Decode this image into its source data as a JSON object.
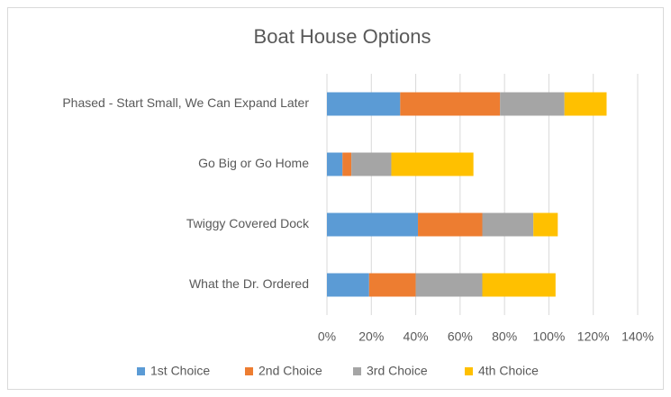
{
  "chart_data": {
    "type": "stacked-bar-horizontal",
    "title": "Boat House Options",
    "categories": [
      "Phased - Start Small, We Can Expand Later",
      "Go Big or Go Home",
      "Twiggy Covered Dock",
      "What the Dr. Ordered"
    ],
    "series": [
      {
        "name": "1st Choice",
        "color": "#5b9bd5",
        "values": [
          33,
          7,
          41,
          19
        ]
      },
      {
        "name": "2nd Choice",
        "color": "#ed7d31",
        "values": [
          45,
          4,
          29,
          21
        ]
      },
      {
        "name": "3rd Choice",
        "color": "#a5a5a5",
        "values": [
          29,
          18,
          23,
          30
        ]
      },
      {
        "name": "4th Choice",
        "color": "#ffc000",
        "values": [
          19,
          37,
          11,
          33
        ]
      }
    ],
    "xlim": [
      0,
      140
    ],
    "xticks": [
      {
        "value": 0,
        "label": "0%"
      },
      {
        "value": 20,
        "label": "20%"
      },
      {
        "value": 40,
        "label": "40%"
      },
      {
        "value": 60,
        "label": "60%"
      },
      {
        "value": 80,
        "label": "80%"
      },
      {
        "value": 100,
        "label": "100%"
      },
      {
        "value": 120,
        "label": "120%"
      },
      {
        "value": 140,
        "label": "140%"
      }
    ],
    "grid": true,
    "legend": "bottom"
  }
}
